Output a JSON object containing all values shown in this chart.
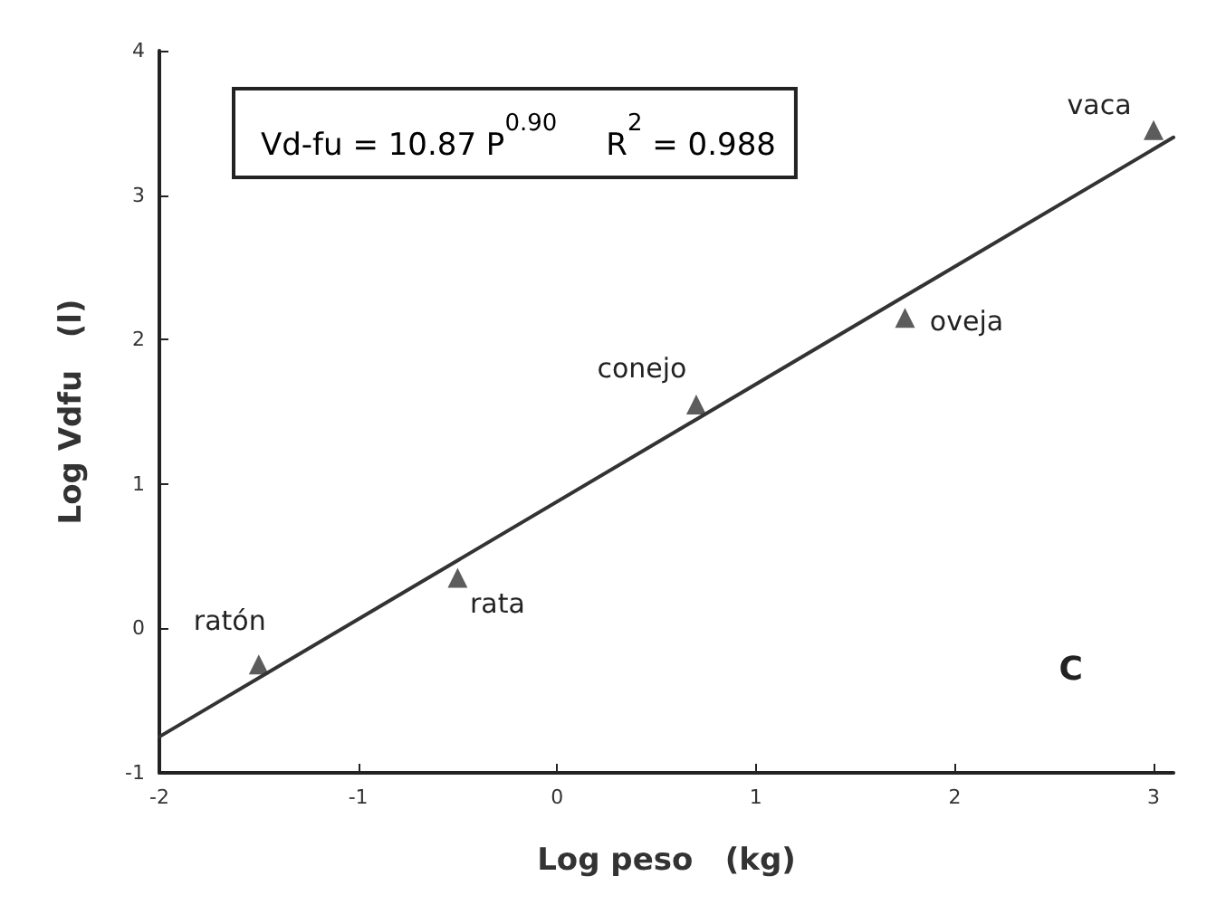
{
  "chart_data": {
    "type": "scatter",
    "xlabel": "Log peso   (kg)",
    "ylabel": "Log Vdfu   (l)",
    "xlim": [
      -2,
      3.1
    ],
    "xticks": [
      -2,
      -1,
      0,
      1,
      2,
      3
    ],
    "ylim": [
      -1,
      4
    ],
    "yticks": [
      -1,
      0,
      1,
      2,
      3,
      4
    ],
    "grid": false,
    "marker": "triangle",
    "series": [
      {
        "color": "#333333",
        "x": [
          -1.5,
          -0.5,
          0.7,
          1.75,
          3.0
        ],
        "values": [
          -0.25,
          0.35,
          1.55,
          2.15,
          3.45
        ]
      },
      {
        "type": "line",
        "color": "#333333",
        "marker": "none",
        "line_style": "solid",
        "x": [
          -2,
          3.1
        ],
        "values": [
          -0.75,
          3.4
        ]
      }
    ],
    "annotations": [
      "Vd-fu = 10.87 P$^{0.90}$     R$^{2}$ = 0.988",
      "C",
      {
        "text": "ratón",
        "x": -1.5,
        "y": -0.25
      },
      {
        "text": "rata",
        "x": -0.5,
        "y": 0.35
      },
      {
        "text": "conejo",
        "x": 0.7,
        "y": 1.55
      },
      {
        "text": "oveja",
        "x": 1.75,
        "y": 2.15
      },
      {
        "text": "vaca",
        "x": 3.0,
        "y": 3.45
      }
    ]
  }
}
